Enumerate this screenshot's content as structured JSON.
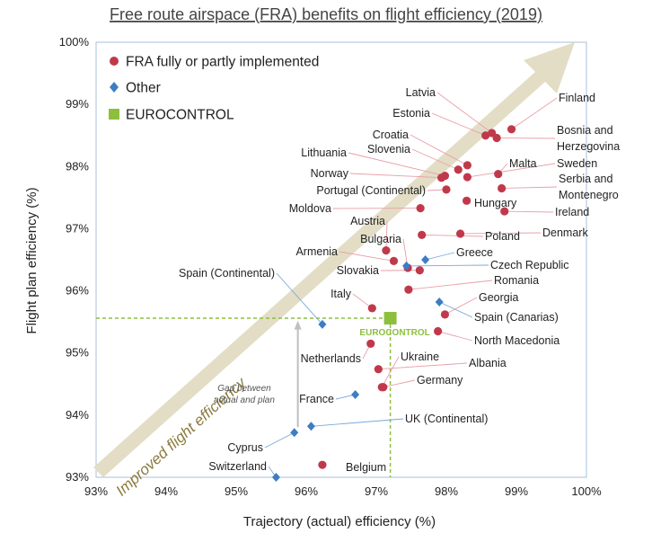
{
  "chart_data": {
    "type": "scatter",
    "title": "Free route airspace (FRA) benefits on flight efficiency (2019)",
    "xlabel": "Trajectory (actual) efficiency (%)",
    "ylabel": "Flight plan efficiency (%)",
    "xlim": [
      93,
      100
    ],
    "ylim": [
      93,
      100
    ],
    "xticks": [
      "93%",
      "94%",
      "95%",
      "96%",
      "97%",
      "98%",
      "99%",
      "100%"
    ],
    "yticks": [
      "93%",
      "94%",
      "95%",
      "96%",
      "97%",
      "98%",
      "99%",
      "100%"
    ],
    "legend_position": "top-left",
    "arrow_text": "Improved flight efficiency",
    "gap_note": [
      "Gap between",
      "actual and plan"
    ],
    "ec_label": "EUROCONTROL",
    "colors": {
      "fra": "#c0394b",
      "other": "#3d7dc4",
      "eurocontrol": "#8dbf3f",
      "arrow": "#e3ddc6",
      "leader": "#e8a0a8",
      "leader_blue": "#7aa8d8"
    },
    "series": [
      {
        "name": "FRA fully or partly implemented",
        "marker": "circle",
        "points": [
          {
            "label": "Latvia",
            "x": 98.65,
            "y": 98.54
          },
          {
            "label": "Estonia",
            "x": 98.56,
            "y": 98.5
          },
          {
            "label": "Finland",
            "x": 98.93,
            "y": 98.6
          },
          {
            "label": "Bosnia and Herzegovina",
            "x": 98.72,
            "y": 98.46
          },
          {
            "label": "Croatia",
            "x": 98.3,
            "y": 98.02
          },
          {
            "label": "Slovenia",
            "x": 98.17,
            "y": 97.95
          },
          {
            "label": "Malta",
            "x": 98.74,
            "y": 97.88
          },
          {
            "label": "Sweden",
            "x": 98.3,
            "y": 97.83
          },
          {
            "label": "Lithuania",
            "x": 97.98,
            "y": 97.85
          },
          {
            "label": "Norway",
            "x": 97.93,
            "y": 97.82
          },
          {
            "label": "Serbia and Montenegro",
            "x": 98.79,
            "y": 97.65
          },
          {
            "label": "Portugal (Continental)",
            "x": 98.0,
            "y": 97.63
          },
          {
            "label": "Hungary",
            "x": 98.29,
            "y": 97.45
          },
          {
            "label": "Ireland",
            "x": 98.83,
            "y": 97.28
          },
          {
            "label": "Moldova",
            "x": 97.63,
            "y": 97.33
          },
          {
            "label": "Denmark",
            "x": 98.2,
            "y": 96.92
          },
          {
            "label": "Poland",
            "x": 97.65,
            "y": 96.9
          },
          {
            "label": "Austria",
            "x": 97.14,
            "y": 96.65
          },
          {
            "label": "Armenia",
            "x": 97.25,
            "y": 96.48
          },
          {
            "label": "Bulgaria",
            "x": 97.45,
            "y": 96.37
          },
          {
            "label": "Slovakia",
            "x": 97.62,
            "y": 96.33
          },
          {
            "label": "Romania",
            "x": 97.46,
            "y": 96.02
          },
          {
            "label": "Georgia",
            "x": 97.98,
            "y": 95.62
          },
          {
            "label": "Italy",
            "x": 96.94,
            "y": 95.72
          },
          {
            "label": "North Macedonia",
            "x": 97.88,
            "y": 95.35
          },
          {
            "label": "Netherlands",
            "x": 96.92,
            "y": 95.15
          },
          {
            "label": "Albania",
            "x": 97.03,
            "y": 94.74
          },
          {
            "label": "Ukraine",
            "x": 97.08,
            "y": 94.45
          },
          {
            "label": "Germany",
            "x": 97.1,
            "y": 94.45
          },
          {
            "label": "Belgium",
            "x": 96.23,
            "y": 93.2
          }
        ]
      },
      {
        "name": "Other",
        "marker": "diamond",
        "points": [
          {
            "label": "Greece",
            "x": 97.7,
            "y": 96.5
          },
          {
            "label": "Czech Republic",
            "x": 97.43,
            "y": 96.4
          },
          {
            "label": "Spain (Continental)",
            "x": 96.23,
            "y": 95.46
          },
          {
            "label": "Spain (Canarias)",
            "x": 97.9,
            "y": 95.82
          },
          {
            "label": "France",
            "x": 96.7,
            "y": 94.33
          },
          {
            "label": "UK (Continental)",
            "x": 96.07,
            "y": 93.82
          },
          {
            "label": "Cyprus",
            "x": 95.83,
            "y": 93.72
          },
          {
            "label": "Switzerland",
            "x": 95.57,
            "y": 93.0
          }
        ]
      },
      {
        "name": "EUROCONTROL",
        "marker": "square",
        "points": [
          {
            "label": "EUROCONTROL",
            "x": 97.2,
            "y": 95.56
          }
        ]
      }
    ]
  }
}
